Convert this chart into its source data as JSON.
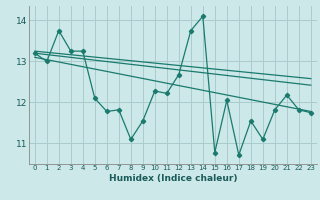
{
  "xlabel": "Humidex (Indice chaleur)",
  "bg_color": "#cce8e8",
  "grid_color": "#aacccc",
  "line_color": "#1a7a6e",
  "xlim": [
    -0.5,
    23.5
  ],
  "ylim": [
    10.5,
    14.35
  ],
  "yticks": [
    11,
    12,
    13,
    14
  ],
  "xticks": [
    0,
    1,
    2,
    3,
    4,
    5,
    6,
    7,
    8,
    9,
    10,
    11,
    12,
    13,
    14,
    15,
    16,
    17,
    18,
    19,
    20,
    21,
    22,
    23
  ],
  "series1_x": [
    0,
    1,
    2,
    3,
    4,
    5,
    6,
    7,
    8,
    9,
    10,
    11,
    12,
    13,
    14,
    15,
    16,
    17,
    18,
    19,
    20,
    21,
    22,
    23
  ],
  "series1_y": [
    13.2,
    13.0,
    13.75,
    13.25,
    13.25,
    12.1,
    11.78,
    11.82,
    11.1,
    11.55,
    12.28,
    12.22,
    12.68,
    13.75,
    14.1,
    10.78,
    12.05,
    10.72,
    11.55,
    11.1,
    11.82,
    12.18,
    11.82,
    11.75
  ],
  "trend1_x": [
    0,
    23
  ],
  "trend1_y": [
    13.25,
    12.58
  ],
  "trend2_x": [
    0,
    23
  ],
  "trend2_y": [
    13.2,
    12.42
  ],
  "trend3_x": [
    0,
    23
  ],
  "trend3_y": [
    13.1,
    11.78
  ]
}
